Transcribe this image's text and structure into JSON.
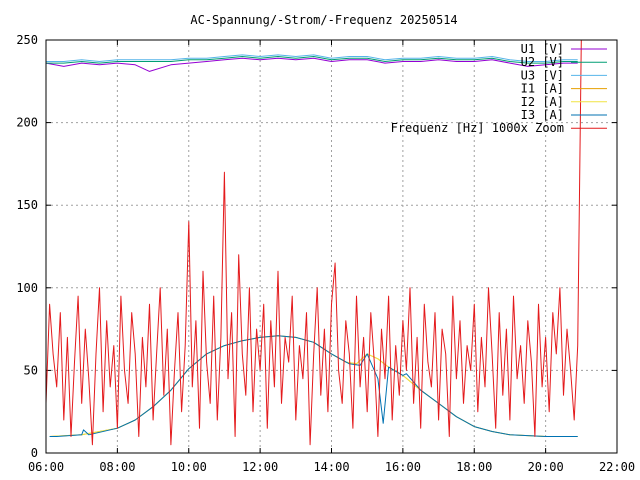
{
  "chart_data": {
    "type": "line",
    "title": "AC-Spannung/-Strom/-Frequenz 20250514",
    "xlabel": "",
    "ylabel": "",
    "x_range_hours": [
      6,
      22
    ],
    "ylim": [
      0,
      250
    ],
    "grid": true,
    "legend_position": "top-right",
    "x_ticks": [
      "06:00",
      "08:00",
      "10:00",
      "12:00",
      "14:00",
      "16:00",
      "18:00",
      "20:00",
      "22:00"
    ],
    "y_ticks": [
      0,
      50,
      100,
      150,
      200,
      250
    ],
    "series": [
      {
        "name": "U1 [V]",
        "color": "#9400d3",
        "x": [
          6.0,
          6.5,
          7.0,
          7.5,
          8.0,
          8.5,
          8.9,
          9.5,
          10.0,
          10.5,
          11.0,
          11.5,
          12.0,
          12.5,
          13.0,
          13.5,
          14.0,
          14.5,
          15.0,
          15.5,
          16.0,
          16.5,
          17.0,
          17.5,
          18.0,
          18.5,
          19.0,
          19.5,
          20.0,
          20.5,
          20.9
        ],
        "y": [
          236,
          234,
          236,
          235,
          236,
          235,
          231,
          235,
          236,
          237,
          238,
          239,
          238,
          239,
          238,
          239,
          237,
          238,
          238,
          236,
          237,
          237,
          238,
          237,
          237,
          238,
          236,
          234,
          235,
          236,
          236
        ]
      },
      {
        "name": "U2 [V]",
        "color": "#009e73",
        "x": [
          6.0,
          6.5,
          7.0,
          7.5,
          8.0,
          8.5,
          9.0,
          9.5,
          10.0,
          10.5,
          11.0,
          11.5,
          12.0,
          12.5,
          13.0,
          13.5,
          14.0,
          14.5,
          15.0,
          15.5,
          16.0,
          16.5,
          17.0,
          17.5,
          18.0,
          18.5,
          19.0,
          19.5,
          20.0,
          20.5,
          20.9
        ],
        "y": [
          236,
          236,
          237,
          236,
          237,
          237,
          237,
          237,
          238,
          238,
          239,
          240,
          239,
          240,
          239,
          240,
          238,
          239,
          239,
          237,
          238,
          238,
          239,
          238,
          238,
          239,
          237,
          236,
          236,
          237,
          237
        ]
      },
      {
        "name": "U3 [V]",
        "color": "#56b4e9",
        "x": [
          6.0,
          6.5,
          7.0,
          7.5,
          8.0,
          8.5,
          9.0,
          9.5,
          10.0,
          10.5,
          11.0,
          11.5,
          12.0,
          12.5,
          13.0,
          13.5,
          14.0,
          14.5,
          15.0,
          15.5,
          16.0,
          16.5,
          17.0,
          17.5,
          18.0,
          18.5,
          19.0,
          19.5,
          20.0,
          20.5,
          20.9
        ],
        "y": [
          237,
          237,
          238,
          237,
          238,
          238,
          238,
          238,
          239,
          239,
          240,
          241,
          240,
          241,
          240,
          241,
          239,
          240,
          240,
          238,
          239,
          239,
          240,
          239,
          239,
          240,
          238,
          237,
          237,
          238,
          238
        ]
      },
      {
        "name": "I1 [A]",
        "color": "#e69f00",
        "x": [
          6.1,
          7.0,
          8.0,
          8.5,
          9.0,
          9.5,
          10.0,
          10.5,
          11.0,
          11.5,
          12.0,
          12.5,
          13.0,
          13.5,
          14.0,
          14.4,
          14.7,
          15.0,
          15.3,
          15.6,
          16.0,
          16.5,
          17.0,
          17.5,
          18.0,
          18.5,
          19.0,
          20.0,
          20.9
        ],
        "y": [
          10,
          11,
          15,
          20,
          28,
          38,
          51,
          60,
          65,
          68,
          70,
          71,
          70,
          67,
          60,
          55,
          54,
          60,
          57,
          52,
          47,
          38,
          30,
          22,
          16,
          13,
          11,
          10,
          10
        ]
      },
      {
        "name": "I2 [A]",
        "color": "#f0e442",
        "x": [
          6.1,
          7.0,
          8.0,
          8.5,
          9.0,
          9.5,
          10.0,
          10.5,
          11.0,
          11.5,
          12.0,
          12.5,
          13.0,
          13.5,
          14.0,
          14.4,
          14.7,
          15.0,
          15.3,
          15.6,
          16.0,
          16.5,
          17.0,
          17.5,
          18.0,
          18.5,
          19.0,
          20.0,
          20.9
        ],
        "y": [
          10,
          11,
          15,
          20,
          28,
          38,
          51,
          60,
          65,
          68,
          70,
          71,
          70,
          67,
          60,
          55,
          54,
          60,
          57,
          52,
          47,
          38,
          30,
          22,
          16,
          13,
          11,
          10,
          10
        ]
      },
      {
        "name": "I3 [A]",
        "color": "#0072b2",
        "x": [
          6.1,
          6.3,
          7.0,
          7.05,
          7.2,
          8.0,
          8.5,
          9.0,
          9.5,
          10.0,
          10.5,
          11.0,
          11.5,
          12.0,
          12.5,
          13.0,
          13.5,
          14.0,
          14.5,
          14.8,
          15.0,
          15.3,
          15.45,
          15.6,
          16.0,
          16.1,
          16.5,
          17.0,
          17.5,
          18.0,
          18.5,
          19.0,
          20.0,
          20.9
        ],
        "y": [
          10,
          10,
          11,
          14,
          11,
          15,
          20,
          28,
          38,
          51,
          60,
          65,
          68,
          70,
          71,
          70,
          67,
          60,
          54,
          53,
          60,
          45,
          18,
          52,
          47,
          48,
          38,
          30,
          22,
          16,
          13,
          11,
          10,
          10
        ]
      },
      {
        "name": "Frequenz [Hz] 1000x Zoom",
        "color": "#e41a1c",
        "x": [
          6.0,
          6.1,
          6.2,
          6.3,
          6.4,
          6.5,
          6.6,
          6.7,
          6.8,
          6.9,
          7.0,
          7.1,
          7.2,
          7.3,
          7.4,
          7.5,
          7.6,
          7.7,
          7.8,
          7.9,
          8.0,
          8.1,
          8.2,
          8.3,
          8.4,
          8.5,
          8.6,
          8.7,
          8.8,
          8.9,
          9.0,
          9.1,
          9.2,
          9.3,
          9.4,
          9.5,
          9.6,
          9.7,
          9.8,
          9.9,
          10.0,
          10.1,
          10.2,
          10.3,
          10.4,
          10.5,
          10.6,
          10.7,
          10.8,
          10.9,
          11.0,
          11.1,
          11.2,
          11.3,
          11.4,
          11.5,
          11.6,
          11.7,
          11.8,
          11.9,
          12.0,
          12.1,
          12.2,
          12.3,
          12.4,
          12.5,
          12.6,
          12.7,
          12.8,
          12.9,
          13.0,
          13.1,
          13.2,
          13.3,
          13.4,
          13.5,
          13.6,
          13.7,
          13.8,
          13.9,
          14.0,
          14.1,
          14.2,
          14.3,
          14.4,
          14.5,
          14.6,
          14.7,
          14.8,
          14.9,
          15.0,
          15.1,
          15.2,
          15.3,
          15.4,
          15.5,
          15.6,
          15.7,
          15.8,
          15.9,
          16.0,
          16.1,
          16.2,
          16.3,
          16.4,
          16.5,
          16.6,
          16.7,
          16.8,
          16.9,
          17.0,
          17.1,
          17.2,
          17.3,
          17.4,
          17.5,
          17.6,
          17.7,
          17.8,
          17.9,
          18.0,
          18.1,
          18.2,
          18.3,
          18.4,
          18.5,
          18.6,
          18.7,
          18.8,
          18.9,
          19.0,
          19.1,
          19.2,
          19.3,
          19.4,
          19.5,
          19.6,
          19.7,
          19.8,
          19.9,
          20.0,
          20.1,
          20.2,
          20.3,
          20.4,
          20.5,
          20.6,
          20.7,
          20.8,
          20.9,
          21.0
        ],
        "y": [
          30,
          90,
          60,
          40,
          85,
          20,
          70,
          10,
          55,
          95,
          30,
          75,
          45,
          5,
          60,
          100,
          25,
          80,
          40,
          65,
          15,
          95,
          50,
          30,
          85,
          60,
          10,
          70,
          40,
          90,
          20,
          60,
          100,
          35,
          75,
          5,
          50,
          85,
          25,
          65,
          140,
          40,
          80,
          15,
          110,
          55,
          30,
          95,
          20,
          70,
          170,
          45,
          85,
          10,
          120,
          60,
          35,
          100,
          25,
          75,
          50,
          90,
          15,
          80,
          40,
          110,
          30,
          70,
          55,
          95,
          20,
          65,
          45,
          85,
          5,
          60,
          100,
          35,
          75,
          25,
          90,
          115,
          50,
          30,
          80,
          60,
          15,
          95,
          40,
          70,
          25,
          85,
          55,
          10,
          75,
          45,
          95,
          20,
          65,
          35,
          80,
          50,
          100,
          30,
          70,
          15,
          90,
          55,
          40,
          85,
          20,
          75,
          60,
          10,
          95,
          45,
          80,
          30,
          65,
          50,
          90,
          25,
          70,
          40,
          100,
          60,
          15,
          85,
          35,
          75,
          20,
          95,
          45,
          65,
          30,
          80,
          55,
          10,
          90,
          40,
          70,
          25,
          85,
          60,
          100,
          35,
          75,
          50,
          20,
          65,
          250
        ]
      }
    ]
  }
}
